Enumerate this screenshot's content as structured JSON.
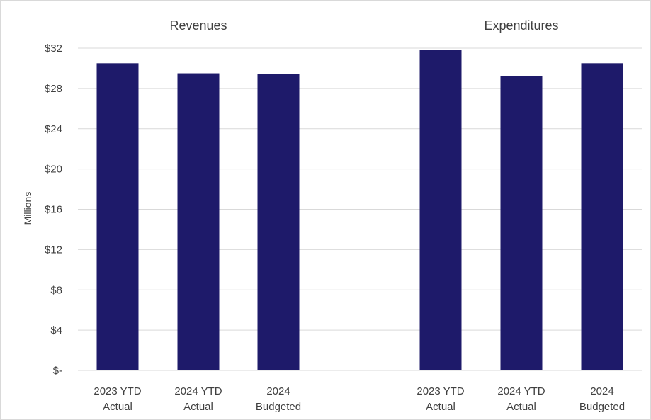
{
  "chart_data": {
    "type": "bar",
    "ylabel": "Millions",
    "ylim": [
      0,
      32
    ],
    "yticks": [
      {
        "value": 0,
        "label": "$-"
      },
      {
        "value": 4,
        "label": "$4"
      },
      {
        "value": 8,
        "label": "$8"
      },
      {
        "value": 12,
        "label": "$12"
      },
      {
        "value": 16,
        "label": "$16"
      },
      {
        "value": 20,
        "label": "$20"
      },
      {
        "value": 24,
        "label": "$24"
      },
      {
        "value": 28,
        "label": "$28"
      },
      {
        "value": 32,
        "label": "$32"
      }
    ],
    "grid": true,
    "bar_color": "#1e1a6a",
    "groups": [
      {
        "title": "Revenues",
        "categories": [
          [
            "2023 YTD",
            "Actual"
          ],
          [
            "2024 YTD",
            "Actual"
          ],
          [
            "2024",
            "Budgeted"
          ]
        ],
        "values": [
          30.5,
          29.5,
          29.4
        ]
      },
      {
        "title": "Expenditures",
        "categories": [
          [
            "2023 YTD",
            "Actual"
          ],
          [
            "2024 YTD",
            "Actual"
          ],
          [
            "2024",
            "Budgeted"
          ]
        ],
        "values": [
          31.8,
          29.2,
          30.5
        ]
      }
    ]
  }
}
